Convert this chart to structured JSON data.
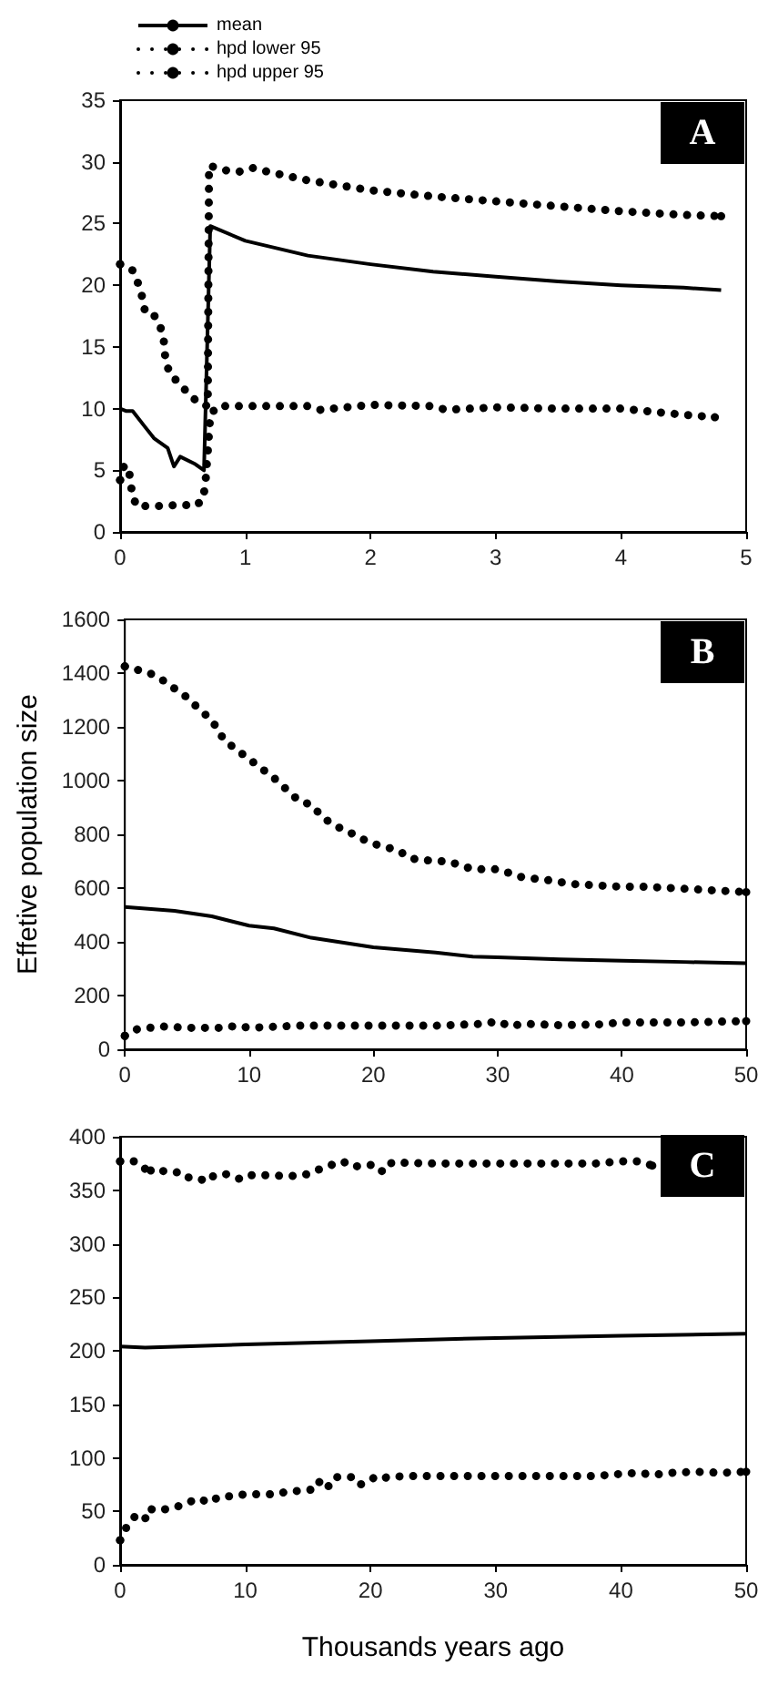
{
  "chart_data": [
    {
      "type": "line",
      "legend": "top",
      "grid": false,
      "annotations": [
        "A"
      ],
      "xlim": [
        0,
        5
      ],
      "xticks": [
        0,
        1,
        2,
        3,
        4,
        5
      ],
      "ylim": [
        0,
        35
      ],
      "yticks": [
        0,
        5,
        10,
        15,
        20,
        25,
        30,
        35
      ],
      "series": [
        {
          "name": "mean",
          "color": "#000000",
          "line_style": "solid",
          "x": [
            0,
            0.05,
            0.1,
            0.2,
            0.27,
            0.38,
            0.43,
            0.48,
            0.6,
            0.67,
            0.72,
            1,
            1.5,
            2,
            2.5,
            3,
            3.5,
            4,
            4.5,
            4.8
          ],
          "values": [
            10,
            9.8,
            9.8,
            8.5,
            7.6,
            6.8,
            5.3,
            6.1,
            5.5,
            5.0,
            24.8,
            23.6,
            22.4,
            21.7,
            21.1,
            20.7,
            20.3,
            20.0,
            19.8,
            19.6
          ]
        },
        {
          "name": "hpd lower 95",
          "color": "#000000",
          "line_style": "dotted",
          "x": [
            0,
            0.03,
            0.07,
            0.08,
            0.1,
            0.13,
            0.3,
            0.5,
            0.6,
            0.66,
            0.68,
            0.7,
            0.72,
            0.78,
            1,
            1.5,
            1.6,
            2,
            2.5,
            2.6,
            3,
            3.5,
            4,
            4.2,
            4.5,
            4.75
          ],
          "values": [
            4.2,
            5.3,
            5.3,
            4.1,
            3,
            2.1,
            2.1,
            2.2,
            2.1,
            2.6,
            3.8,
            6.5,
            9.5,
            10.2,
            10.2,
            10.2,
            9.9,
            10.3,
            10.2,
            9.9,
            10.1,
            10.0,
            10.0,
            9.8,
            9.5,
            9.3
          ]
        },
        {
          "name": "hpd upper 95",
          "color": "#000000",
          "line_style": "dotted",
          "x": [
            0,
            0.1,
            0.15,
            0.18,
            0.2,
            0.27,
            0.33,
            0.35,
            0.36,
            0.39,
            0.47,
            0.57,
            0.63,
            0.7,
            0.71,
            0.85,
            0.95,
            1.06,
            1.18,
            1.5,
            2,
            2.5,
            3,
            3.5,
            4,
            4.5,
            4.8
          ],
          "values": [
            21.7,
            21.2,
            20,
            18.9,
            17.8,
            17.6,
            16.4,
            15.4,
            14.2,
            13,
            12,
            11,
            10.4,
            10.2,
            29.7,
            29.3,
            29.2,
            29.5,
            29.2,
            28.5,
            27.7,
            27.2,
            26.8,
            26.4,
            26.0,
            25.7,
            25.6
          ]
        }
      ]
    },
    {
      "type": "line",
      "legend": false,
      "grid": false,
      "annotations": [
        "B"
      ],
      "ylabel": "Effetive population size",
      "xlim": [
        0,
        50
      ],
      "xticks": [
        0,
        10,
        20,
        30,
        40,
        50
      ],
      "ylim": [
        0,
        1600
      ],
      "yticks": [
        0,
        200,
        400,
        600,
        800,
        1000,
        1200,
        1400,
        1600
      ],
      "series": [
        {
          "color": "#000000",
          "line_style": "solid",
          "x": [
            0,
            4,
            7,
            10,
            12,
            15,
            20,
            25,
            28,
            30,
            35,
            40,
            45,
            50
          ],
          "values": [
            530,
            515,
            495,
            460,
            450,
            415,
            380,
            360,
            345,
            342,
            335,
            330,
            325,
            320
          ]
        },
        {
          "color": "#000000",
          "line_style": "dotted",
          "x": [
            0,
            1,
            3,
            5,
            8,
            9,
            10,
            14,
            20,
            25,
            29,
            30,
            31,
            32,
            35,
            38,
            40,
            45,
            50
          ],
          "values": [
            50,
            75,
            85,
            80,
            80,
            88,
            80,
            88,
            88,
            88,
            95,
            105,
            85,
            95,
            90,
            92,
            100,
            100,
            105
          ]
        },
        {
          "color": "#000000",
          "line_style": "dotted",
          "x": [
            0,
            2,
            3,
            5,
            6,
            7,
            8,
            10,
            12,
            14,
            15,
            16,
            17,
            18,
            19,
            20,
            22,
            23,
            25,
            26,
            28,
            30,
            32,
            34,
            36,
            38,
            40,
            42,
            44,
            46,
            48,
            50
          ],
          "values": [
            1425,
            1400,
            1375,
            1310,
            1265,
            1225,
            1150,
            1080,
            1010,
            925,
            910,
            860,
            830,
            810,
            785,
            765,
            740,
            710,
            700,
            700,
            670,
            670,
            640,
            630,
            615,
            610,
            605,
            605,
            600,
            595,
            590,
            585
          ]
        }
      ]
    },
    {
      "type": "line",
      "legend": false,
      "grid": false,
      "annotations": [
        "C"
      ],
      "xlabel": "Thousands years ago",
      "xlim": [
        0,
        50
      ],
      "xticks": [
        0,
        10,
        20,
        30,
        40,
        50
      ],
      "ylim": [
        0,
        400
      ],
      "yticks": [
        0,
        50,
        100,
        150,
        200,
        250,
        300,
        350,
        400
      ],
      "series": [
        {
          "color": "#000000",
          "line_style": "solid",
          "x": [
            0,
            2,
            5,
            10,
            20,
            30,
            40,
            50
          ],
          "values": [
            204,
            203,
            204,
            206,
            209,
            212,
            214,
            216
          ]
        },
        {
          "color": "#000000",
          "line_style": "dotted",
          "x": [
            0,
            0.5,
            1.3,
            2,
            2.3,
            2.7,
            3.7,
            4.5,
            5.3,
            6.4,
            7,
            8,
            9,
            10,
            11,
            12.5,
            13.5,
            14.5,
            15.7,
            16,
            16.7,
            17.3,
            18.7,
            19.2,
            20.2,
            20.8,
            21.3,
            23,
            30,
            35,
            38,
            40,
            41.5,
            42.5,
            44,
            46,
            48,
            50
          ],
          "values": [
            23,
            35,
            47,
            43,
            53,
            51,
            52,
            54,
            58,
            62,
            58,
            64,
            64,
            66,
            66,
            66,
            69,
            69,
            71,
            80,
            73,
            82,
            82,
            75,
            81,
            79,
            82,
            83,
            83,
            83,
            83,
            85,
            86,
            84,
            86,
            87,
            86,
            87
          ]
        },
        {
          "color": "#000000",
          "line_style": "dotted",
          "x": [
            0,
            1.2,
            2,
            2.2,
            2.5,
            3.5,
            4.5,
            5,
            6,
            7,
            7.5,
            8.5,
            9.7,
            10.5,
            12,
            13.5,
            15,
            16,
            16.7,
            17.8,
            18.5,
            19.5,
            20.3,
            21,
            21.7,
            25,
            30,
            35,
            38,
            40,
            41.5,
            42.5
          ],
          "values": [
            377,
            377,
            370,
            375,
            367,
            368,
            367,
            362,
            362,
            358,
            364,
            365,
            360,
            364,
            364,
            363,
            365,
            370,
            373,
            377,
            372,
            373,
            374,
            367,
            376,
            375,
            375,
            375,
            375,
            377,
            377,
            373
          ]
        }
      ]
    }
  ]
}
